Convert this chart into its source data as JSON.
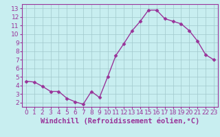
{
  "x": [
    0,
    1,
    2,
    3,
    4,
    5,
    6,
    7,
    8,
    9,
    10,
    11,
    12,
    13,
    14,
    15,
    16,
    17,
    18,
    19,
    20,
    21,
    22,
    23
  ],
  "y": [
    4.5,
    4.4,
    3.9,
    3.3,
    3.3,
    2.5,
    2.1,
    1.8,
    3.3,
    2.6,
    5.0,
    7.5,
    8.9,
    10.4,
    11.5,
    12.8,
    12.8,
    11.8,
    11.5,
    11.2,
    10.4,
    9.2,
    7.6,
    7.0
  ],
  "line_color": "#993399",
  "marker": "D",
  "markersize": 2.5,
  "linewidth": 1.0,
  "xlabel": "Windchill (Refroidissement éolien,°C)",
  "bg_color": "#c8eef0",
  "grid_color": "#a0c8cc",
  "axis_color": "#993399",
  "ylim": [
    1.5,
    13.5
  ],
  "xlim": [
    -0.5,
    23.5
  ],
  "yticks": [
    2,
    3,
    4,
    5,
    6,
    7,
    8,
    9,
    10,
    11,
    12,
    13
  ],
  "xticks": [
    0,
    1,
    2,
    3,
    4,
    5,
    6,
    7,
    8,
    9,
    10,
    11,
    12,
    13,
    14,
    15,
    16,
    17,
    18,
    19,
    20,
    21,
    22,
    23
  ],
  "tick_fontsize": 6.5,
  "xlabel_fontsize": 7.5
}
